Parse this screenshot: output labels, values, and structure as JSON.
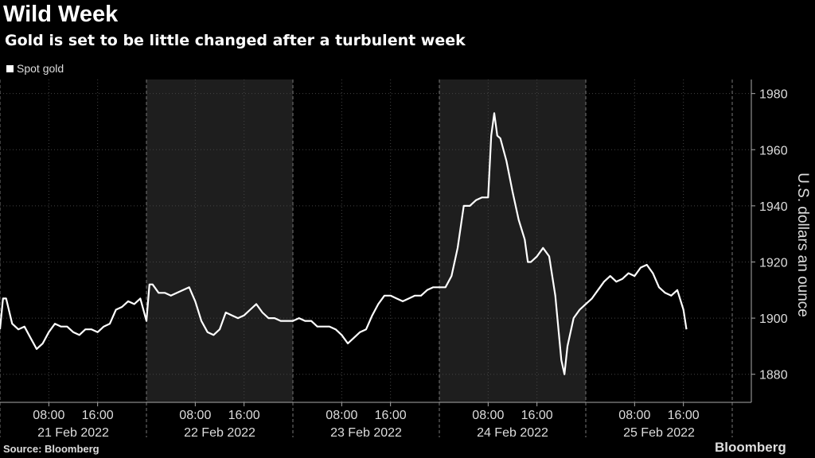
{
  "header": {
    "title": "Wild Week",
    "subtitle": "Gold is set to be little changed after a turbulent week"
  },
  "legend": {
    "label": "Spot gold"
  },
  "footer": {
    "source": "Source: Bloomberg",
    "brand": "Bloomberg"
  },
  "chart_data": {
    "type": "line",
    "title": "Wild Week",
    "subtitle": "Gold is set to be little changed after a turbulent week",
    "ylabel": "U.S. dollars an ounce",
    "ylim": [
      1870,
      1985
    ],
    "yticks": [
      1880,
      1900,
      1920,
      1940,
      1960,
      1980
    ],
    "days": [
      "21 Feb 2022",
      "22 Feb 2022",
      "23 Feb 2022",
      "24 Feb 2022",
      "25 Feb 2022"
    ],
    "time_ticks": [
      "08:00",
      "16:00"
    ],
    "shaded_days": [
      "22 Feb 2022",
      "24 Feb 2022"
    ],
    "series": [
      {
        "name": "Spot gold",
        "color": "#ffffff",
        "x": [
          0,
          0.5,
          1,
          2,
          3,
          4,
          5,
          6,
          7,
          8,
          9,
          10,
          11,
          12,
          13,
          14,
          15,
          16,
          17,
          18,
          19,
          20,
          21,
          22,
          23,
          24,
          24.5,
          25,
          26,
          27,
          28,
          29,
          30,
          31,
          32,
          33,
          34,
          35,
          36,
          37,
          38,
          39,
          40,
          41,
          42,
          43,
          44,
          45,
          46,
          47,
          48,
          49,
          50,
          51,
          52,
          53,
          54,
          55,
          56,
          57,
          58,
          59,
          60,
          61,
          62,
          63,
          64,
          65,
          66,
          67,
          68,
          69,
          70,
          71,
          72,
          73,
          74,
          75,
          76,
          77,
          78,
          79,
          80,
          80.5,
          81,
          81.5,
          82,
          83,
          84,
          85,
          86,
          86.5,
          87,
          88,
          89,
          90,
          91,
          92,
          92.5,
          93,
          94,
          95,
          96,
          97,
          98,
          99,
          100,
          101,
          102,
          103,
          104,
          105,
          106,
          107,
          108,
          109,
          110,
          111,
          112,
          112.5
        ],
        "values": [
          1896,
          1907,
          1907,
          1898,
          1896,
          1897,
          1893,
          1889,
          1891,
          1895,
          1898,
          1897,
          1897,
          1895,
          1894,
          1896,
          1896,
          1895,
          1897,
          1898,
          1903,
          1904,
          1906,
          1905,
          1907,
          1899,
          1912,
          1912,
          1909,
          1909,
          1908,
          1909,
          1910,
          1911,
          1906,
          1899,
          1895,
          1894,
          1896,
          1902,
          1901,
          1900,
          1901,
          1903,
          1905,
          1902,
          1900,
          1900,
          1899,
          1899,
          1899,
          1900,
          1899,
          1899,
          1897,
          1897,
          1897,
          1896,
          1894,
          1891,
          1893,
          1895,
          1896,
          1901,
          1905,
          1908,
          1908,
          1907,
          1906,
          1907,
          1908,
          1908,
          1910,
          1911,
          1911,
          1911,
          1915,
          1925,
          1940,
          1940,
          1942,
          1943,
          1943,
          1965,
          1973,
          1965,
          1964,
          1956,
          1945,
          1935,
          1928,
          1920,
          1920,
          1922,
          1925,
          1922,
          1908,
          1885,
          1880,
          1890,
          1900,
          1903,
          1905,
          1907,
          1910,
          1913,
          1915,
          1913,
          1914,
          1916,
          1915,
          1918,
          1919,
          1916,
          1911,
          1909,
          1908,
          1910,
          1903,
          1896
        ]
      }
    ]
  }
}
